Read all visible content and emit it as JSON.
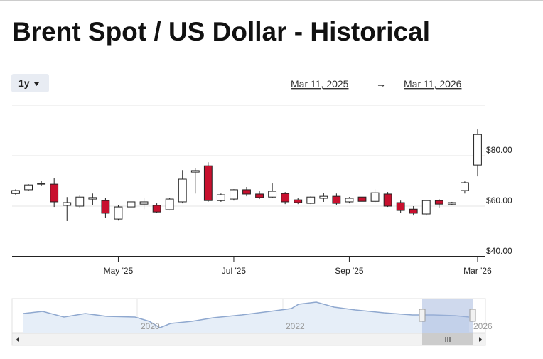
{
  "chart_data": {
    "type": "candlestick",
    "title": "Brent Spot / US Dollar - Historical",
    "categories": [
      null,
      null,
      null,
      null,
      null,
      null,
      null,
      null,
      "May '25",
      null,
      null,
      null,
      null,
      null,
      null,
      null,
      null,
      "Jul '25",
      null,
      null,
      null,
      null,
      null,
      null,
      null,
      null,
      "Sep '25",
      null,
      null,
      null,
      null,
      null,
      null,
      null,
      null,
      null,
      "Mar '26"
    ],
    "open": [
      65.0,
      66.5,
      68.7,
      68.7,
      60.3,
      60.0,
      62.8,
      62.2,
      54.9,
      59.7,
      60.8,
      60.3,
      58.6,
      61.7,
      73.5,
      76.0,
      62.2,
      62.8,
      66.5,
      64.8,
      63.6,
      65.0,
      62.5,
      61.1,
      63.1,
      63.9,
      61.7,
      63.6,
      61.9,
      64.8,
      61.4,
      58.8,
      56.9,
      62.2,
      60.8,
      66.2,
      76.3
    ],
    "high": [
      66.7,
      68.7,
      70.1,
      71.2,
      63.6,
      64.2,
      65.0,
      63.1,
      60.3,
      62.8,
      63.4,
      61.1,
      63.1,
      74.3,
      75.2,
      77.4,
      65.0,
      66.7,
      67.6,
      65.9,
      69.0,
      65.6,
      63.1,
      63.9,
      65.3,
      65.0,
      63.6,
      64.2,
      66.7,
      65.6,
      62.2,
      60.0,
      62.5,
      62.8,
      61.7,
      69.8,
      90.4
    ],
    "low": [
      64.5,
      66.2,
      67.9,
      59.7,
      54.1,
      59.4,
      60.5,
      55.5,
      54.3,
      58.8,
      58.8,
      57.2,
      58.3,
      61.1,
      65.0,
      61.7,
      61.7,
      62.2,
      63.9,
      62.8,
      63.1,
      60.8,
      60.8,
      60.8,
      61.7,
      60.5,
      61.1,
      61.7,
      61.4,
      59.7,
      57.4,
      56.3,
      56.3,
      59.4,
      60.3,
      65.0,
      71.8
    ],
    "close": [
      66.2,
      68.4,
      69.0,
      61.7,
      61.4,
      63.6,
      63.4,
      57.2,
      59.7,
      61.7,
      61.7,
      57.7,
      62.8,
      70.7,
      74.1,
      62.2,
      64.5,
      66.5,
      64.8,
      63.4,
      65.9,
      61.7,
      61.4,
      63.6,
      63.9,
      61.1,
      63.1,
      61.9,
      65.3,
      60.0,
      58.3,
      57.2,
      62.2,
      60.8,
      61.4,
      69.3,
      88.4
    ],
    "up_color": "#ffffff",
    "down_color": "#c8102e",
    "ylim": [
      40,
      100
    ],
    "yticks": [
      {
        "value": 40,
        "label": "$40.00"
      },
      {
        "value": 60,
        "label": "$60.00"
      },
      {
        "value": 80,
        "label": "$80.00"
      }
    ],
    "grid": true
  },
  "controls": {
    "range": "1y",
    "start_date": "Mar 11, 2025",
    "arrow": "→",
    "end_date": "Mar 11, 2026"
  },
  "navigator": {
    "labels": [
      "2020",
      "2022",
      "2026"
    ]
  }
}
